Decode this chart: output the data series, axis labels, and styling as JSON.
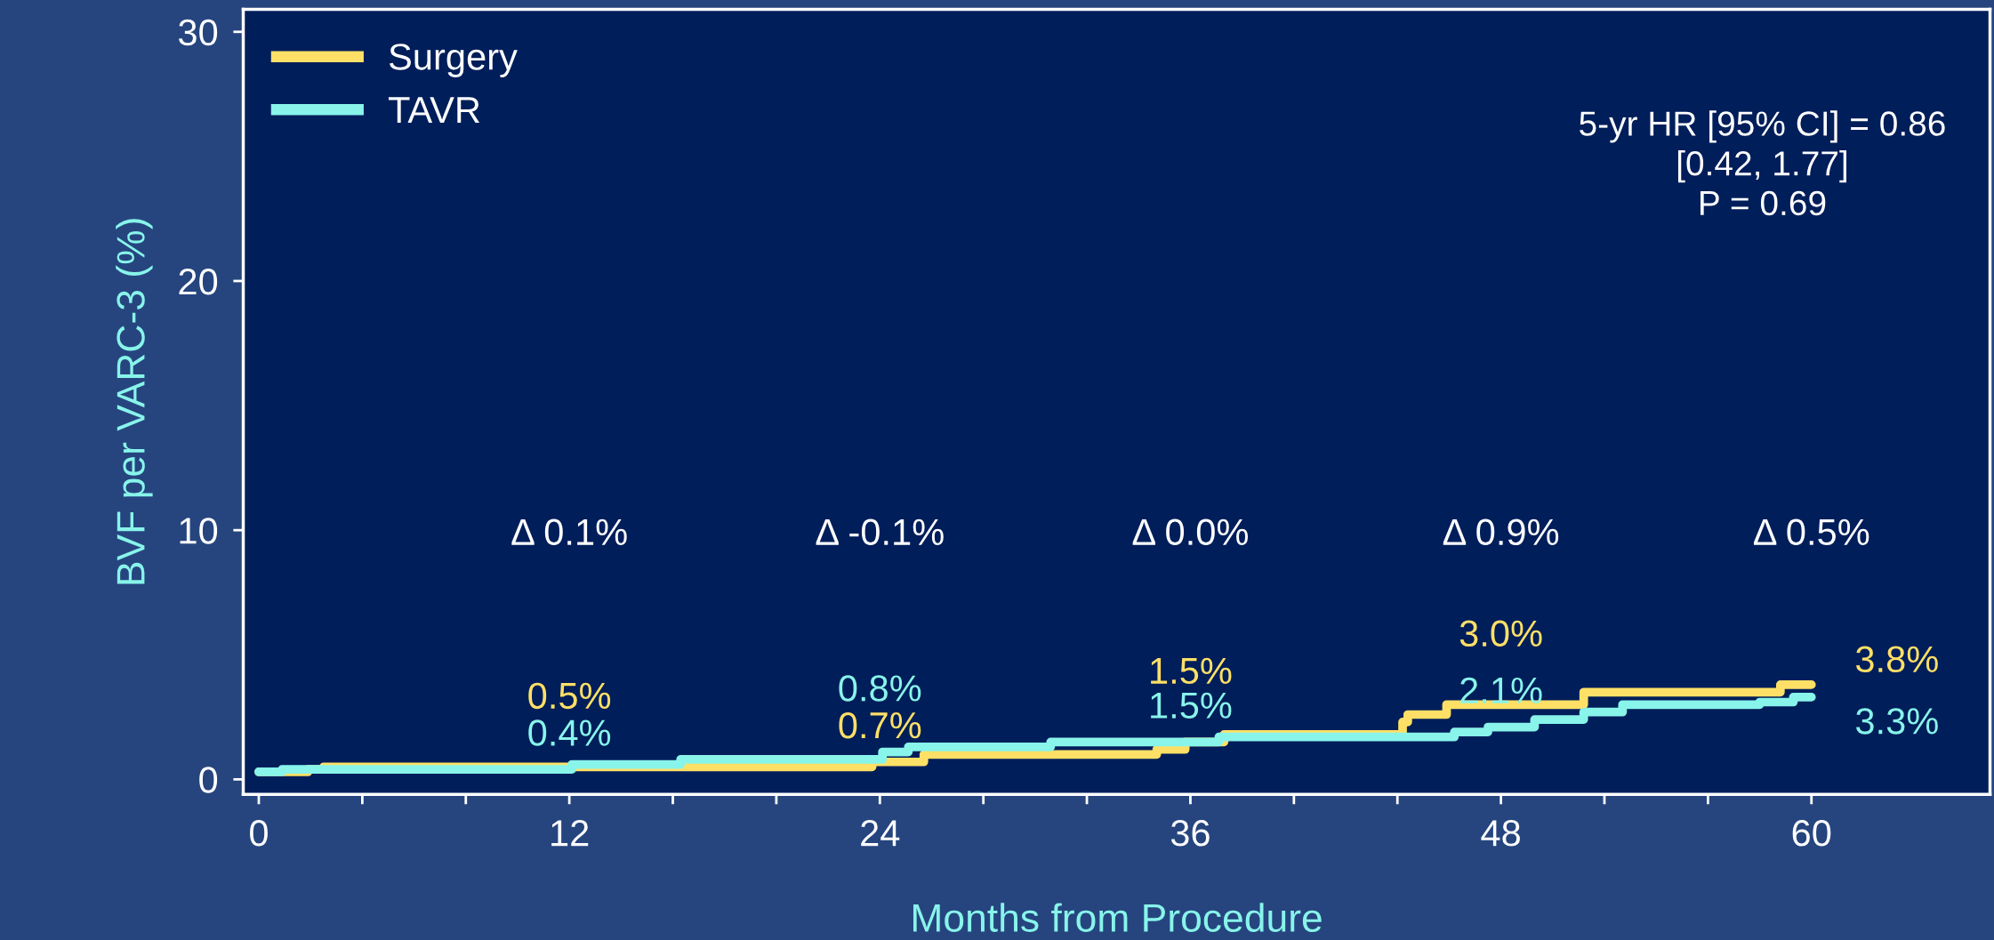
{
  "chart_data": {
    "type": "step",
    "xlabel": "Months from Procedure",
    "ylabel": "BVF per VARC-3 (%)",
    "xlim": [
      -0.6,
      66.9
    ],
    "ylim": [
      -0.6,
      30.9
    ],
    "xticks": [
      0,
      {
        "value": 4,
        "label": null
      },
      {
        "value": 8,
        "label": null
      },
      12,
      {
        "value": 16,
        "label": null
      },
      {
        "value": 20,
        "label": null
      },
      24,
      {
        "value": 28,
        "label": null
      },
      {
        "value": 32,
        "label": null
      },
      36,
      {
        "value": 40,
        "label": null
      },
      {
        "value": 44,
        "label": null
      },
      48,
      {
        "value": 52,
        "label": null
      },
      {
        "value": 56,
        "label": null
      },
      60
    ],
    "yticks": [
      0,
      10,
      20,
      30
    ],
    "grid": false,
    "legend": "top left",
    "series": [
      {
        "name": "Surgery",
        "color": "#ffe066",
        "x": [
          0,
          1.9,
          2.5,
          12,
          23.7,
          24,
          25.7,
          34.7,
          35.8,
          36,
          37.3,
          44.2,
          44.4,
          45.9,
          48,
          51.2,
          58.8,
          60
        ],
        "values": [
          0.3,
          0.4,
          0.5,
          0.5,
          0.7,
          0.7,
          1.0,
          1.2,
          1.5,
          1.5,
          1.8,
          2.3,
          2.6,
          3.0,
          3.0,
          3.5,
          3.8,
          3.8
        ],
        "value_labels": [
          null,
          null,
          null,
          "0.5%",
          null,
          "0.7%",
          null,
          null,
          null,
          "1.5%",
          null,
          null,
          null,
          null,
          "3.0%",
          null,
          null,
          "3.8%"
        ]
      },
      {
        "name": "TAVR",
        "color": "#88f4ea",
        "x": [
          0,
          0.9,
          12,
          12.1,
          16.3,
          24,
          24.1,
          25.1,
          30.6,
          36,
          37.1,
          46.2,
          47.5,
          48,
          49.3,
          51.2,
          52.7,
          58,
          59.3,
          60
        ],
        "values": [
          0.3,
          0.4,
          0.4,
          0.6,
          0.8,
          0.8,
          1.1,
          1.3,
          1.5,
          1.5,
          1.7,
          1.9,
          2.1,
          2.1,
          2.4,
          2.7,
          3.0,
          3.1,
          3.3,
          3.3
        ],
        "value_labels": [
          null,
          null,
          "0.4%",
          null,
          null,
          "0.8%",
          null,
          null,
          null,
          "1.5%",
          null,
          null,
          null,
          "2.1%",
          null,
          null,
          null,
          null,
          null,
          "3.3%"
        ]
      }
    ],
    "annotations": [
      "Δ 0.1%",
      "Δ -0.1%",
      "Δ 0.0%",
      "Δ 0.9%",
      "Δ 0.5%",
      "5-yr HR [95% CI] = 0.86\n[0.42, 1.77]\nP = 0.69"
    ]
  }
}
